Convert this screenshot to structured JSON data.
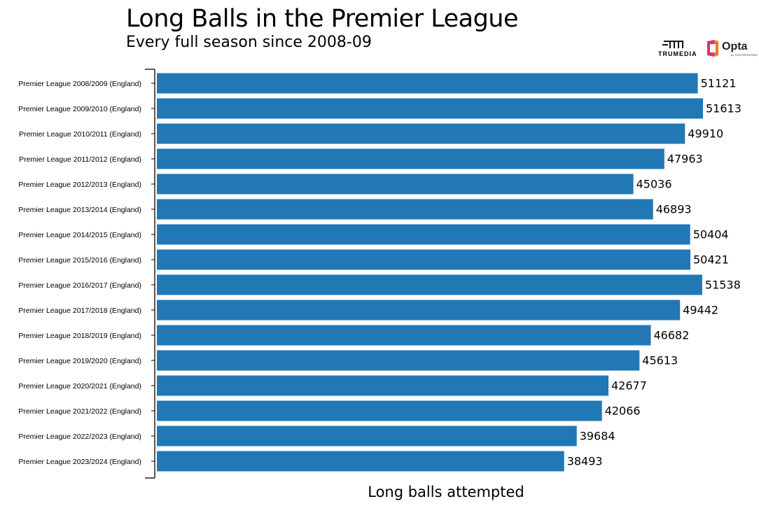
{
  "title": "Long Balls in the Premier League",
  "subtitle": "Every full season since 2008-09",
  "logos": {
    "trumedia": "TRUMEDIA",
    "opta": "Opta",
    "opta_tagline": "by STATSPERFORM"
  },
  "colors": {
    "bar": "#2178b5",
    "axis": "#000000"
  },
  "chart_data": {
    "type": "bar",
    "orientation": "horizontal",
    "title": "Long Balls in the Premier League",
    "subtitle": "Every full season since 2008-09",
    "xlabel": "Long balls attempted",
    "ylabel": "",
    "categories": [
      "Premier League 2008/2009 (England)",
      "Premier League 2009/2010 (England)",
      "Premier League 2010/2011 (England)",
      "Premier League 2011/2012 (England)",
      "Premier League 2012/2013 (England)",
      "Premier League 2013/2014 (England)",
      "Premier League 2014/2015 (England)",
      "Premier League 2015/2016 (England)",
      "Premier League 2016/2017 (England)",
      "Premier League 2017/2018 (England)",
      "Premier League 2018/2019 (England)",
      "Premier League 2019/2020 (England)",
      "Premier League 2020/2021 (England)",
      "Premier League 2021/2022 (England)",
      "Premier League 2022/2023 (England)",
      "Premier League 2023/2024 (England)"
    ],
    "values": [
      51121,
      51613,
      49910,
      47963,
      45036,
      46893,
      50404,
      50421,
      51538,
      49442,
      46682,
      45613,
      42677,
      42066,
      39684,
      38493
    ],
    "xlim": [
      0,
      51613
    ],
    "grid": false,
    "data_labels": true,
    "legend": "none"
  }
}
